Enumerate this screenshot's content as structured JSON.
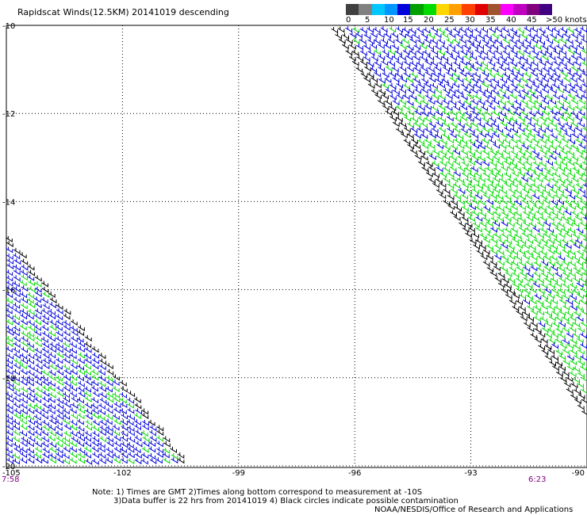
{
  "title": "Rapidscat Winds(12.5KM) 20141019 descending",
  "legend": {
    "colors": [
      "#404040",
      "#808080",
      "#00c8ff",
      "#0096ff",
      "#0000dc",
      "#00a000",
      "#00dc00",
      "#ffd700",
      "#ffa000",
      "#ff4000",
      "#e00000",
      "#a0522d",
      "#ff00ff",
      "#c000c0",
      "#800080",
      "#400080"
    ],
    "labels": [
      "0",
      "5",
      "10",
      "15",
      "20",
      "25",
      "30",
      "35",
      "40",
      "45",
      ">50 knots"
    ]
  },
  "map": {
    "lat_labels": [
      "-10",
      "-12",
      "-14",
      "-16",
      "-18",
      "-20"
    ],
    "lon_labels": [
      "-105",
      "-102",
      "-99",
      "-96",
      "-93",
      "-90"
    ],
    "lat_range": [
      -20,
      -10
    ],
    "lon_range": [
      -105,
      -90
    ],
    "grid": true
  },
  "times": {
    "left": "7:58",
    "right": "6:23"
  },
  "note": {
    "line1": "Note: 1) Times are GMT 2)Times along bottom correspond to measurement at -10S",
    "line2": "3)Data buffer is 22 hrs from 20141019 4) Black circles indicate possible contamination",
    "credit": "NOAA/NESDIS/Office of Research and Applications"
  }
}
